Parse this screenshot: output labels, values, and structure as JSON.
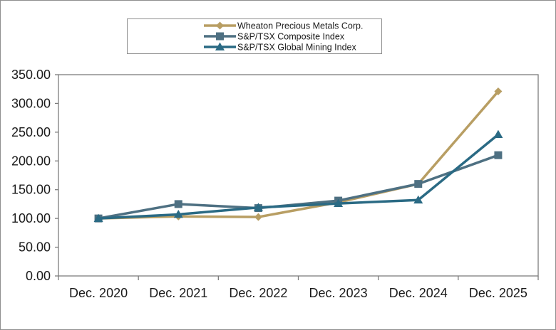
{
  "chart_data": {
    "type": "line",
    "categories": [
      "Dec. 2020",
      "Dec. 2021",
      "Dec. 2022",
      "Dec. 2023",
      "Dec. 2024",
      "Dec. 2025"
    ],
    "series": [
      {
        "name": "Wheaton Precious Metals Corp.",
        "values": [
          100,
          103.5,
          102.5,
          128,
          160,
          321
        ],
        "color": "#b89e63",
        "marker": "diamond"
      },
      {
        "name": "S&P/TSX Composite Index",
        "values": [
          100,
          125,
          118,
          131,
          160,
          210
        ],
        "color": "#4e7082",
        "marker": "square"
      },
      {
        "name": "S&P/TSX Global Mining Index",
        "values": [
          100,
          107,
          119,
          126,
          132,
          246
        ],
        "color": "#2a6a84",
        "marker": "triangle"
      }
    ],
    "ylim": [
      0,
      350
    ],
    "yticks": [
      "0.00",
      "50.00",
      "100.00",
      "150.00",
      "200.00",
      "250.00",
      "300.00",
      "350.00"
    ],
    "legend_position": "top-center",
    "grid": false
  }
}
